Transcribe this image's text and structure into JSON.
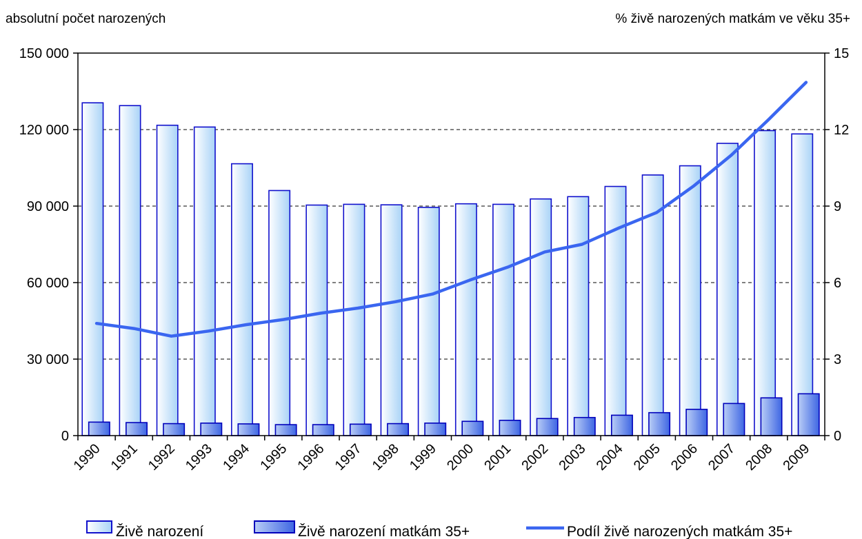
{
  "chart_data": {
    "type": "bar",
    "categories": [
      "1990",
      "1991",
      "1992",
      "1993",
      "1994",
      "1995",
      "1996",
      "1997",
      "1998",
      "1999",
      "2000",
      "2001",
      "2002",
      "2003",
      "2004",
      "2005",
      "2006",
      "2007",
      "2008",
      "2009"
    ],
    "ylabel_left": "absolutní počet narozených",
    "ylabel_right": "% živě narozených matkám ve věku 35+",
    "ylim_left": [
      0,
      150000
    ],
    "ylim_right": [
      0,
      15
    ],
    "yticks_left": [
      "0",
      "30 000",
      "60 000",
      "90 000",
      "120 000",
      "150 000"
    ],
    "yticks_right": [
      "0",
      "3",
      "6",
      "9",
      "12",
      "15"
    ],
    "grid": "horizontal dashed",
    "legend_position": "bottom",
    "series": [
      {
        "name": "Živě narození",
        "type": "bar",
        "axis": "left",
        "color": "#bfe0fb",
        "values": [
          130500,
          129400,
          121700,
          121000,
          106600,
          96100,
          90400,
          90700,
          90500,
          89500,
          90900,
          90700,
          92800,
          93700,
          97700,
          102200,
          105800,
          114600,
          119600,
          118300
        ]
      },
      {
        "name": "Živě narození matkám 35+",
        "type": "bar",
        "axis": "left",
        "color": "#4f78e6",
        "values": [
          5300,
          5100,
          4700,
          4900,
          4600,
          4300,
          4300,
          4500,
          4700,
          4900,
          5600,
          6000,
          6700,
          7100,
          8000,
          9000,
          10300,
          12600,
          14800,
          16400
        ]
      },
      {
        "name": "Podíl živě narozených matkám 35+",
        "type": "line",
        "axis": "right",
        "color": "#3a66f0",
        "values": [
          4.4,
          4.2,
          3.9,
          4.1,
          4.35,
          4.55,
          4.8,
          5.0,
          5.25,
          5.55,
          6.1,
          6.6,
          7.2,
          7.5,
          8.15,
          8.75,
          9.8,
          11.0,
          12.4,
          13.85
        ]
      }
    ]
  }
}
